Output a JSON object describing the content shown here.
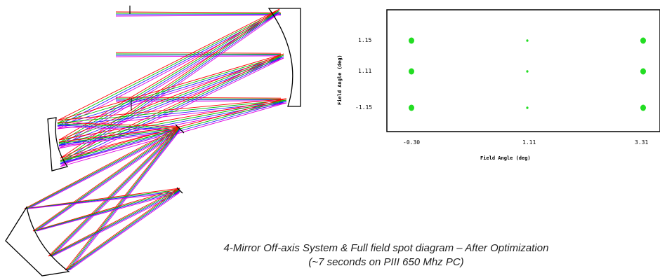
{
  "caption": {
    "line1": "4-Mirror Off-axis System & Full field spot diagram – After Optimization",
    "line2": "(~7 seconds on PIII 650 Mhz PC)"
  },
  "colors": {
    "ray_red": "#ff0000",
    "ray_green": "#00c000",
    "ray_blue": "#2020ff",
    "ray_magenta": "#e000e0",
    "spot": "#22dd22",
    "mirror": "#000000"
  },
  "ray_diagram": {
    "ray_colors": [
      "red",
      "green",
      "blue",
      "magenta"
    ]
  },
  "spot_diagram": {
    "x_tick_labels": [
      "-0.30",
      "1.11",
      "3.31"
    ],
    "y_tick_labels": [
      "1.15",
      "1.11",
      "-1.15"
    ],
    "xlabel": "Field Angle (deg)",
    "ylabel": "Field Angle (deg)",
    "spot_sizes": [
      [
        "large",
        "small",
        "large"
      ],
      [
        "large",
        "small",
        "large"
      ],
      [
        "large",
        "small",
        "large"
      ]
    ]
  }
}
